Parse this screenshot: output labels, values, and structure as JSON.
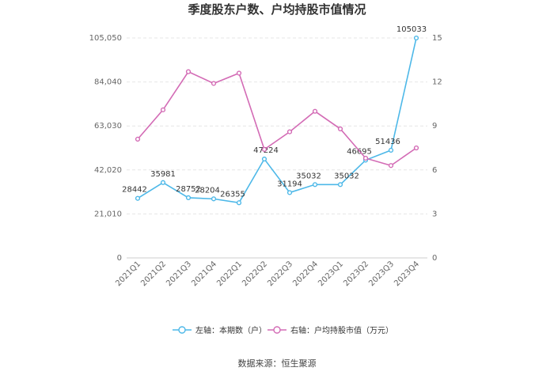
{
  "chart_data": {
    "type": "line",
    "title": "季度股东户数、户均持股市值情况",
    "categories": [
      "2021Q1",
      "2021Q2",
      "2021Q3",
      "2021Q4",
      "2022Q1",
      "2022Q2",
      "2022Q3",
      "2022Q4",
      "2023Q1",
      "2023Q2",
      "2023Q3",
      "2023Q4"
    ],
    "y_left": {
      "ylim": [
        0,
        105050
      ],
      "ticks": [
        "0",
        "21,010",
        "42,020",
        "63,030",
        "84,040",
        "105,050"
      ]
    },
    "y_right": {
      "ylim": [
        0,
        15
      ],
      "ticks": [
        "0",
        "3",
        "6",
        "9",
        "12",
        "15"
      ]
    },
    "series": [
      {
        "name": "左轴：本期数（户）",
        "axis": "left",
        "color": "#4db8e8",
        "values": [
          28442,
          35981,
          28752,
          28204,
          26355,
          47224,
          31194,
          35032,
          35032,
          46695,
          51436,
          105033
        ],
        "labels": [
          "28442",
          "35981",
          "28752",
          "28204",
          "26355",
          "47224",
          "31194",
          "35032",
          "35032",
          "46695",
          "51436",
          "105033"
        ]
      },
      {
        "name": "右轴：户均持股市值（万元）",
        "axis": "right",
        "color": "#d36bb5",
        "values": [
          8.1,
          10.1,
          12.7,
          11.9,
          12.6,
          7.4,
          8.6,
          10.0,
          8.8,
          6.8,
          6.3,
          7.5
        ]
      }
    ],
    "grid": true,
    "legend_position": "bottom"
  },
  "footer": {
    "source": "数据来源：恒生聚源"
  }
}
